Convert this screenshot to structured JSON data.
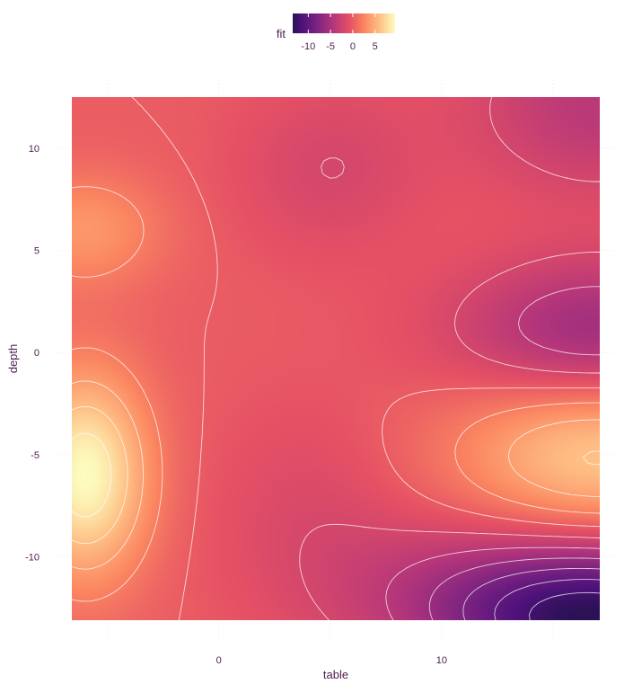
{
  "chart_data": {
    "type": "heatmap",
    "title": "",
    "xlabel": "table",
    "ylabel": "depth",
    "xlim": [
      -6.6,
      17.1
    ],
    "ylim": [
      -13.1,
      12.5
    ],
    "x_ticks": [
      0,
      10
    ],
    "x_tick_labels": [
      "0",
      "10"
    ],
    "y_ticks": [
      -10,
      -5,
      0,
      5,
      10
    ],
    "y_tick_labels": [
      "-10",
      "-5",
      "0",
      "5",
      "10"
    ],
    "grid": true,
    "contours": true,
    "legend": {
      "title": "fit",
      "position": "top",
      "range": [
        -13.5,
        9.5
      ],
      "ticks": [
        -10,
        -5,
        0,
        5
      ],
      "tick_labels": [
        "-10",
        "-5",
        "0",
        "5"
      ],
      "colormap": "magma"
    },
    "surface": [
      {
        "x": -6.0,
        "y": -6.0,
        "value": 9.5,
        "sx": 2.0,
        "sy": 3.5
      },
      {
        "x": -6.0,
        "y": 6.0,
        "value": 3.5,
        "sx": 2.5,
        "sy": 2.0
      },
      {
        "x": 17.0,
        "y": -5.0,
        "value": 6.5,
        "sx": 4.5,
        "sy": 2.8
      },
      {
        "x": 17.0,
        "y": 1.0,
        "value": -6.0,
        "sx": 4.5,
        "sy": 2.5
      },
      {
        "x": 17.0,
        "y": -13.0,
        "value": -13.5,
        "sx": 5.0,
        "sy": 2.5
      },
      {
        "x": 17.0,
        "y": 12.0,
        "value": -4.0,
        "sx": 4.0,
        "sy": 3.0
      },
      {
        "x": 5.0,
        "y": 9.0,
        "value": -2.0,
        "sx": 3.0,
        "sy": 3.0
      },
      {
        "x": 4.0,
        "y": -8.0,
        "value": -1.5,
        "sx": 3.0,
        "sy": 4.0
      },
      {
        "x": 10.0,
        "y": -11.0,
        "value": -2.0,
        "sx": 4.0,
        "sy": 2.5
      }
    ],
    "surface_base": 0,
    "contour_levels": [
      -12,
      -10,
      -8,
      -6,
      -4,
      -2,
      0,
      2,
      4,
      6,
      8
    ]
  }
}
